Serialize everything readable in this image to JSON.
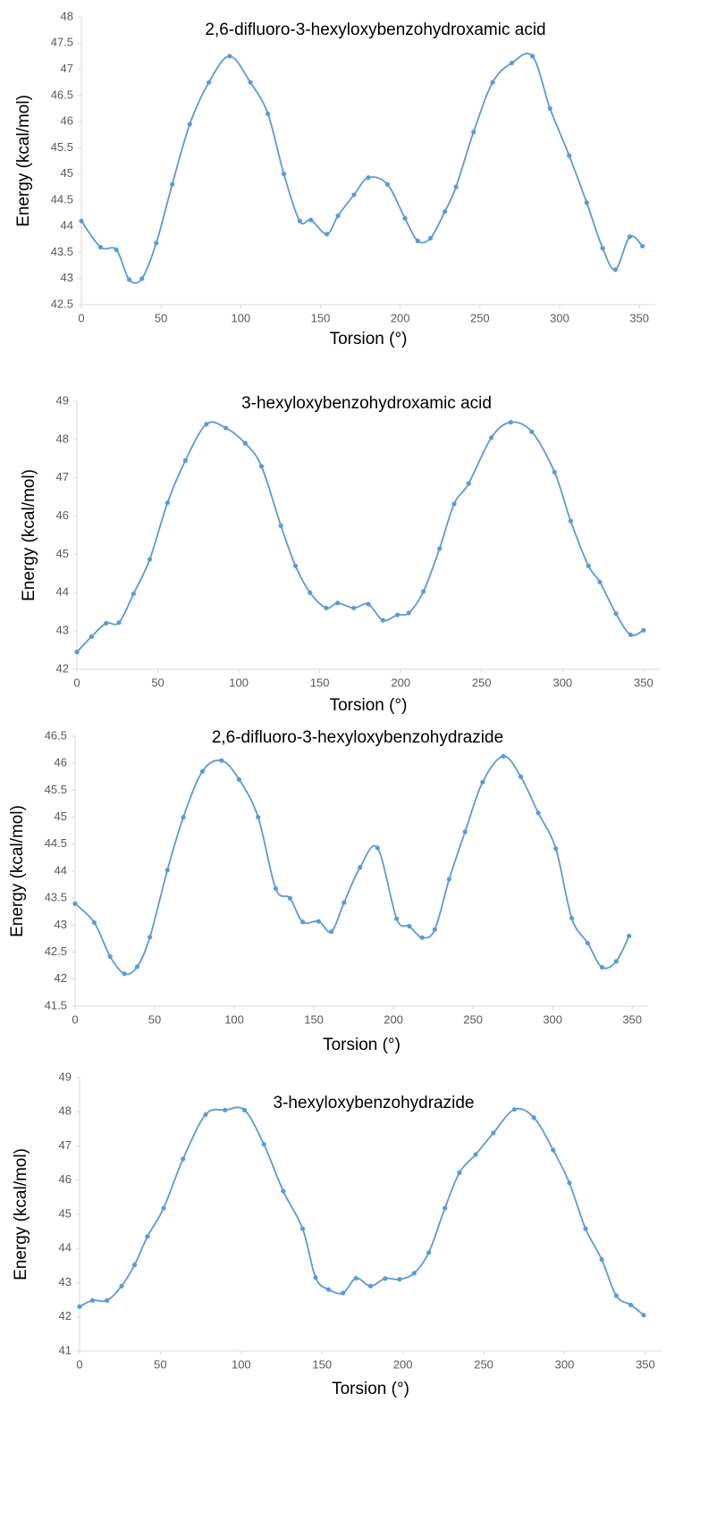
{
  "chart_data": [
    {
      "type": "line",
      "title": "2,6-difluoro-3-hexyloxybenzohydroxamic acid",
      "x_label": "Torsion (°)",
      "y_label": "Energy (kcal/mol)",
      "color": "#5b9bd5",
      "x": [
        0,
        12,
        22,
        30,
        38,
        47,
        57,
        68,
        80,
        93,
        106,
        117,
        127,
        137,
        144,
        154,
        161,
        171,
        180,
        192,
        203,
        211,
        219,
        228,
        235,
        246,
        258,
        270,
        283,
        294,
        306,
        317,
        327,
        335,
        344,
        352
      ],
      "values": [
        44.1,
        43.6,
        43.55,
        42.98,
        43.0,
        43.68,
        44.8,
        45.95,
        46.75,
        47.25,
        46.75,
        46.15,
        45.0,
        44.1,
        44.12,
        43.85,
        44.2,
        44.6,
        44.93,
        44.8,
        44.15,
        43.72,
        43.77,
        44.28,
        44.75,
        45.8,
        46.75,
        47.12,
        47.25,
        46.25,
        45.35,
        44.45,
        43.58,
        43.17,
        43.8,
        43.62
      ],
      "xlim": [
        0,
        360
      ],
      "xticks": [
        0,
        50,
        100,
        150,
        200,
        250,
        300,
        350
      ],
      "ylim": [
        42.5,
        48
      ],
      "yticks": [
        42.5,
        43,
        43.5,
        44,
        44.5,
        45,
        45.5,
        46,
        46.5,
        47,
        47.5,
        48
      ]
    },
    {
      "type": "line",
      "title": "3-hexyloxybenzohydroxamic acid",
      "x_label": "Torsion (°)",
      "y_label": "Energy (kcal/mol)",
      "color": "#5b9bd5",
      "x": [
        0,
        9,
        18,
        26,
        35,
        45,
        56,
        67,
        80,
        92,
        104,
        114,
        126,
        135,
        144,
        154,
        161,
        171,
        180,
        189,
        198,
        205,
        214,
        224,
        233,
        242,
        256,
        268,
        281,
        295,
        305,
        316,
        323,
        333,
        342,
        350
      ],
      "values": [
        42.45,
        42.85,
        43.2,
        43.22,
        43.97,
        44.87,
        46.35,
        47.45,
        48.4,
        48.3,
        47.9,
        47.3,
        45.75,
        44.7,
        44.0,
        43.6,
        43.73,
        43.6,
        43.7,
        43.28,
        43.42,
        43.47,
        44.03,
        45.15,
        46.32,
        46.85,
        48.05,
        48.45,
        48.2,
        47.15,
        45.87,
        44.7,
        44.28,
        43.45,
        42.9,
        43.02
      ],
      "xlim": [
        0,
        360
      ],
      "xticks": [
        0,
        50,
        100,
        150,
        200,
        250,
        300,
        350
      ],
      "ylim": [
        42,
        49
      ],
      "yticks": [
        42,
        43,
        44,
        45,
        46,
        47,
        48,
        49
      ]
    },
    {
      "type": "line",
      "title": "2,6-difluoro-3-hexyloxybenzohydrazide",
      "x_label": "Torsion (°)",
      "y_label": "Energy (kcal/mol)",
      "color": "#5b9bd5",
      "x": [
        0,
        12,
        22,
        31,
        39,
        47,
        58,
        68,
        80,
        92,
        103,
        115,
        126,
        135,
        143,
        153,
        161,
        169,
        179,
        190,
        202,
        210,
        218,
        226,
        235,
        245,
        256,
        269,
        280,
        291,
        302,
        312,
        322,
        331,
        340,
        348
      ],
      "values": [
        43.4,
        43.05,
        42.42,
        42.1,
        42.23,
        42.78,
        44.02,
        45.0,
        45.85,
        46.05,
        45.7,
        45.0,
        43.68,
        43.5,
        43.06,
        43.07,
        42.88,
        43.42,
        44.07,
        44.43,
        43.12,
        42.98,
        42.77,
        42.92,
        43.85,
        44.73,
        45.65,
        46.13,
        45.75,
        45.08,
        44.42,
        43.13,
        42.67,
        42.22,
        42.33,
        42.8
      ],
      "xlim": [
        0,
        360
      ],
      "xticks": [
        0,
        50,
        100,
        150,
        200,
        250,
        300,
        350
      ],
      "ylim": [
        41.5,
        46.5
      ],
      "yticks": [
        41.5,
        42,
        42.5,
        43,
        43.5,
        44,
        44.5,
        45,
        45.5,
        46,
        46.5
      ]
    },
    {
      "type": "line",
      "title": "3-hexyloxybenzohydrazide",
      "x_label": "Torsion (°)",
      "y_label": "Energy (kcal/mol)",
      "color": "#5b9bd5",
      "x": [
        0,
        8,
        17,
        26,
        34,
        42,
        52,
        64,
        78,
        90,
        102,
        114,
        126,
        138,
        146,
        154,
        163,
        171,
        180,
        189,
        198,
        207,
        216,
        226,
        235,
        245,
        256,
        269,
        281,
        293,
        303,
        313,
        323,
        332,
        341,
        349
      ],
      "values": [
        42.3,
        42.48,
        42.48,
        42.9,
        43.52,
        44.35,
        45.18,
        46.62,
        47.92,
        48.05,
        48.05,
        47.05,
        45.68,
        44.58,
        43.15,
        42.8,
        42.7,
        43.13,
        42.9,
        43.12,
        43.1,
        43.28,
        43.88,
        45.18,
        46.22,
        46.75,
        47.38,
        48.07,
        47.83,
        46.88,
        45.92,
        44.58,
        43.68,
        42.62,
        42.35,
        42.05
      ],
      "xlim": [
        0,
        360
      ],
      "xticks": [
        0,
        50,
        100,
        150,
        200,
        250,
        300,
        350
      ],
      "ylim": [
        41,
        49
      ],
      "yticks": [
        41,
        42,
        43,
        44,
        45,
        46,
        47,
        48,
        49
      ]
    }
  ]
}
